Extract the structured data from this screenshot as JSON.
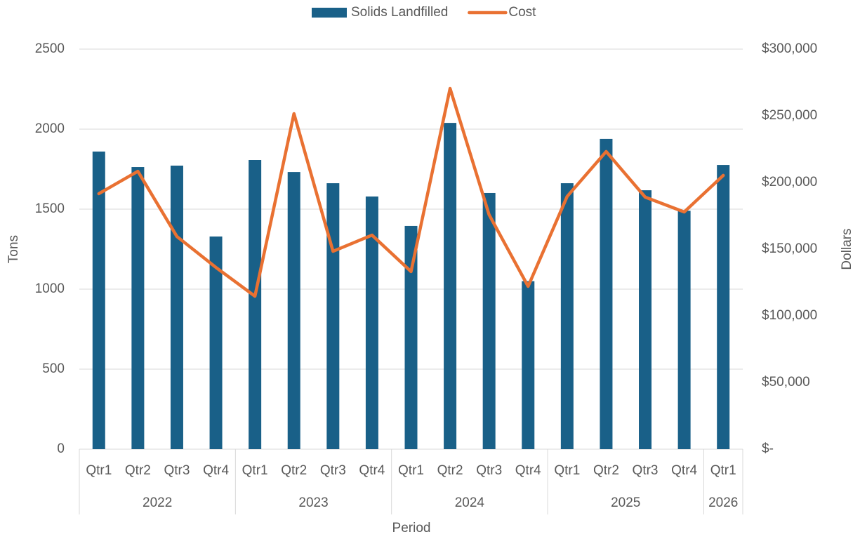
{
  "chart_data": {
    "type": "bar_line",
    "x_label": "Period",
    "y_label": "Tons",
    "y2_label": "Dollars",
    "groups": [
      {
        "label": "2022",
        "categories": [
          "Qtr1",
          "Qtr2",
          "Qtr3",
          "Qtr4"
        ]
      },
      {
        "label": "2023",
        "categories": [
          "Qtr1",
          "Qtr2",
          "Qtr3",
          "Qtr4"
        ]
      },
      {
        "label": "2024",
        "categories": [
          "Qtr1",
          "Qtr2",
          "Qtr3",
          "Qtr4"
        ]
      },
      {
        "label": "2025",
        "categories": [
          "Qtr1",
          "Qtr2",
          "Qtr3",
          "Qtr4"
        ]
      },
      {
        "label": "2026",
        "categories": [
          "Qtr1"
        ]
      }
    ],
    "series": [
      {
        "name": "Solids Landfilled",
        "type": "bar",
        "color": "#196088",
        "values": [
          1860,
          1763,
          1772,
          1329,
          1807,
          1732,
          1662,
          1579,
          1395,
          2039,
          1601,
          1050,
          1662,
          1939,
          1618,
          1490,
          1776
        ]
      },
      {
        "name": "Cost",
        "type": "line",
        "axis": "y2",
        "color": "#e97132",
        "values": [
          191600,
          208400,
          159500,
          136300,
          114700,
          251600,
          148400,
          160500,
          133200,
          270500,
          175800,
          122100,
          189500,
          223200,
          189000,
          177900,
          205300
        ]
      }
    ],
    "ylim": [
      0,
      2500
    ],
    "yticks": [
      0,
      500,
      1000,
      1500,
      2000,
      2500
    ],
    "y2lim": [
      0,
      300000
    ],
    "y2ticks": [
      {
        "value": 0,
        "label": "$-"
      },
      {
        "value": 50000,
        "label": "$50,000"
      },
      {
        "value": 100000,
        "label": "$100,000"
      },
      {
        "value": 150000,
        "label": "$150,000"
      },
      {
        "value": 200000,
        "label": "$200,000"
      },
      {
        "value": 250000,
        "label": "$250,000"
      },
      {
        "value": 300000,
        "label": "$300,000"
      }
    ],
    "grid": true,
    "legend": "top"
  }
}
